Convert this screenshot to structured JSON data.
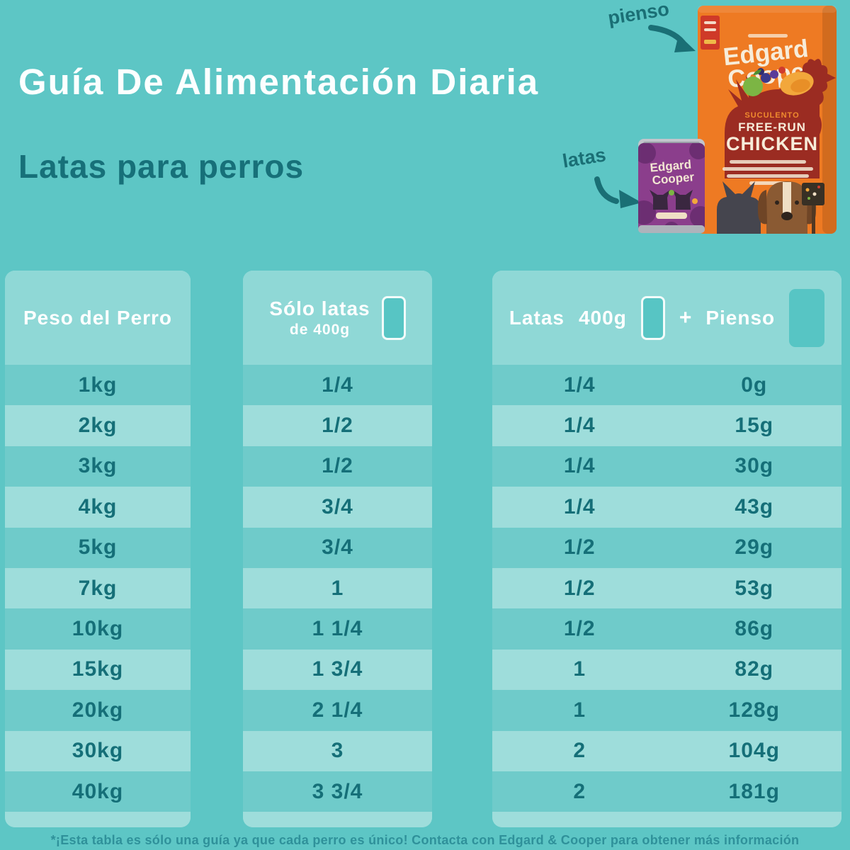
{
  "page": {
    "title": "Guía De Alimentación Diaria",
    "subtitle": "Latas para perros",
    "footnote": "*¡Esta tabla es sólo una guía ya que cada perro es único! Contacta con Edgard & Cooper para obtener más información"
  },
  "products": {
    "kibble_label": "pienso",
    "cans_label": "latas",
    "bag": {
      "brand_line1": "Edgard",
      "brand_line2": "Cooper",
      "flavor_line1": "SUCULENTO",
      "flavor_line2": "FREE-RUN",
      "flavor_line3": "CHICKEN"
    },
    "can": {
      "brand_line1": "Edgard",
      "brand_line2": "Cooper"
    }
  },
  "table": {
    "headers": {
      "weight": "Peso del Perro",
      "cans_only_line1": "Sólo latas",
      "cans_only_line2": "de 400g",
      "mixed_latas": "Latas",
      "mixed_size": "400g",
      "mixed_plus": "+",
      "mixed_pienso": "Pienso"
    },
    "rows": [
      {
        "weight": "1kg",
        "cans_only": "1/4",
        "cans": "1/4",
        "kibble": "0g"
      },
      {
        "weight": "2kg",
        "cans_only": "1/2",
        "cans": "1/4",
        "kibble": "15g"
      },
      {
        "weight": "3kg",
        "cans_only": "1/2",
        "cans": "1/4",
        "kibble": "30g"
      },
      {
        "weight": "4kg",
        "cans_only": "3/4",
        "cans": "1/4",
        "kibble": "43g"
      },
      {
        "weight": "5kg",
        "cans_only": "3/4",
        "cans": "1/2",
        "kibble": "29g"
      },
      {
        "weight": "7kg",
        "cans_only": "1",
        "cans": "1/2",
        "kibble": "53g"
      },
      {
        "weight": "10kg",
        "cans_only": "1 1/4",
        "cans": "1/2",
        "kibble": "86g"
      },
      {
        "weight": "15kg",
        "cans_only": "1 3/4",
        "cans": "1",
        "kibble": "82g"
      },
      {
        "weight": "20kg",
        "cans_only": "2 1/4",
        "cans": "1",
        "kibble": "128g"
      },
      {
        "weight": "30kg",
        "cans_only": "3",
        "cans": "2",
        "kibble": "104g"
      },
      {
        "weight": "40kg",
        "cans_only": "3 3/4",
        "cans": "2",
        "kibble": "181g"
      }
    ]
  },
  "chart_data": {
    "type": "table",
    "title": "Guía De Alimentación Diaria — Latas para perros",
    "columns": [
      "Peso del Perro",
      "Sólo latas de 400g",
      "Latas 400g",
      "+ Pienso"
    ],
    "rows": [
      [
        "1kg",
        "1/4",
        "1/4",
        "0g"
      ],
      [
        "2kg",
        "1/2",
        "1/4",
        "15g"
      ],
      [
        "3kg",
        "1/2",
        "1/4",
        "30g"
      ],
      [
        "4kg",
        "3/4",
        "1/4",
        "43g"
      ],
      [
        "5kg",
        "3/4",
        "1/2",
        "29g"
      ],
      [
        "7kg",
        "1",
        "1/2",
        "53g"
      ],
      [
        "10kg",
        "1 1/4",
        "1/2",
        "86g"
      ],
      [
        "15kg",
        "1 3/4",
        "1",
        "82g"
      ],
      [
        "20kg",
        "2 1/4",
        "1",
        "128g"
      ],
      [
        "30kg",
        "3",
        "2",
        "104g"
      ],
      [
        "40kg",
        "3 3/4",
        "2",
        "181g"
      ]
    ]
  },
  "colors": {
    "background_teal": "#5dc6c5",
    "panel_light_stripe": "#9edddb",
    "panel_dark_stripe": "#6fcbca",
    "panel_header": "#8fd8d6",
    "table_text": "#156f78",
    "title_white": "#fcffff",
    "subtitle_teal": "#177079",
    "footnote_teal": "#2f919a",
    "bag_orange": "#ee7a23",
    "chicken_red": "#9b2c22",
    "can_purple": "#8b3e8c",
    "tag_red": "#cf3a28"
  }
}
